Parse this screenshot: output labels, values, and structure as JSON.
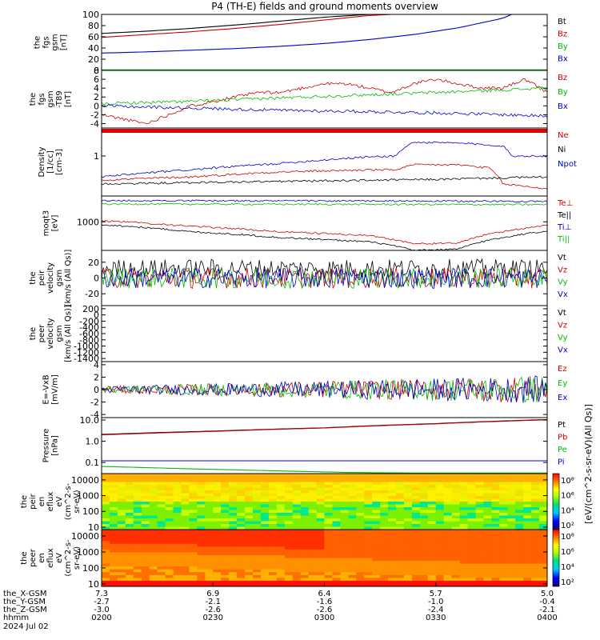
{
  "title": "P4 (TH-E) fields and ground moments overview",
  "chart_data": [
    {
      "type": "line",
      "ylabel": [
        "the",
        "fgs",
        "gsm",
        "[nT]"
      ],
      "ylim": [
        0,
        100
      ],
      "yticks": [
        "100",
        "80",
        "60",
        "40",
        "20",
        "0"
      ],
      "legend": [
        {
          "name": "Bt",
          "color": "#000000"
        },
        {
          "name": "Bz",
          "color": "#cc0000"
        },
        {
          "name": "By",
          "color": "#00bb00"
        },
        {
          "name": "Bx",
          "color": "#0000cc"
        }
      ],
      "series": [
        {
          "name": "Bt",
          "color": "#000000",
          "x": [
            0,
            0.1,
            0.2,
            0.3,
            0.4,
            0.5,
            0.6,
            0.7
          ],
          "y": [
            66,
            70,
            75,
            81,
            88,
            95,
            100,
            100
          ]
        },
        {
          "name": "Bz",
          "color": "#cc0000",
          "x": [
            0,
            0.1,
            0.2,
            0.3,
            0.4,
            0.5,
            0.6,
            0.65
          ],
          "y": [
            59,
            64,
            69,
            75,
            82,
            90,
            98,
            100
          ]
        },
        {
          "name": "By",
          "color": "#00bb00",
          "x": [
            0,
            0.25,
            0.5,
            0.75,
            1
          ],
          "y": [
            1,
            1,
            1,
            1,
            1
          ]
        },
        {
          "name": "Bx",
          "color": "#0000cc",
          "x": [
            0,
            0.1,
            0.2,
            0.3,
            0.4,
            0.5,
            0.6,
            0.7,
            0.8,
            0.9,
            0.92
          ],
          "y": [
            31,
            33,
            36,
            39,
            43,
            48,
            55,
            64,
            76,
            93,
            100
          ]
        }
      ]
    },
    {
      "type": "line",
      "ylabel": [
        "the",
        "fgs",
        "gsm",
        "-T89",
        "[nT]"
      ],
      "ylim": [
        -5,
        8
      ],
      "yticks": [
        "8",
        "6",
        "4",
        "2",
        "0",
        "-2",
        "-4"
      ],
      "legend": [
        {
          "name": "Bz",
          "color": "#cc0000"
        },
        {
          "name": "By",
          "color": "#00bb00"
        },
        {
          "name": "Bx",
          "color": "#0000cc"
        }
      ],
      "series": [
        {
          "name": "Bz",
          "color": "#cc0000",
          "x": [
            0,
            0.05,
            0.1,
            0.15,
            0.2,
            0.25,
            0.3,
            0.35,
            0.4,
            0.45,
            0.5,
            0.55,
            0.6,
            0.65,
            0.7,
            0.75,
            0.8,
            0.85,
            0.9,
            0.95,
            1
          ],
          "y": [
            -2,
            -3,
            -4,
            -2,
            0,
            1,
            2,
            3,
            3,
            4,
            5,
            5,
            4,
            3,
            5,
            6,
            5,
            4,
            4,
            6,
            3
          ]
        },
        {
          "name": "By",
          "color": "#00bb00",
          "x": [
            0,
            0.2,
            0.4,
            0.6,
            0.8,
            1
          ],
          "y": [
            0.5,
            1,
            1.8,
            2.5,
            3.2,
            4
          ]
        },
        {
          "name": "Bx",
          "color": "#0000cc",
          "x": [
            0,
            0.2,
            0.4,
            0.6,
            0.8,
            1
          ],
          "y": [
            0,
            -0.5,
            -1,
            -1.3,
            -1.7,
            -2.3
          ]
        }
      ]
    },
    {
      "type": "line",
      "ylabel": [
        "Density",
        "[1/cc]",
        "[cm-3]"
      ],
      "yscale": "log",
      "ylim": [
        0.1,
        5
      ],
      "yticks": [
        "1"
      ],
      "legend": [
        {
          "name": "Ne",
          "color": "#cc0000"
        },
        {
          "name": "Ni",
          "color": "#000000"
        },
        {
          "name": "Npot",
          "color": "#0000cc"
        }
      ],
      "series": [
        {
          "name": "Ne",
          "color": "#cc0000",
          "x": [
            0,
            0.2,
            0.4,
            0.6,
            0.66,
            0.7,
            0.8,
            0.87,
            0.9,
            1
          ],
          "y": [
            0.25,
            0.3,
            0.4,
            0.45,
            0.45,
            0.6,
            0.6,
            0.5,
            0.2,
            0.15
          ]
        },
        {
          "name": "Ni",
          "color": "#000000",
          "x": [
            0,
            0.25,
            0.5,
            0.75,
            1
          ],
          "y": [
            0.2,
            0.22,
            0.24,
            0.26,
            0.3
          ]
        },
        {
          "name": "Npot",
          "color": "#0000cc",
          "x": [
            0,
            0.2,
            0.4,
            0.6,
            0.66,
            0.7,
            0.8,
            0.9,
            0.92,
            1
          ],
          "y": [
            0.3,
            0.45,
            0.65,
            0.95,
            1,
            2.2,
            2.1,
            1.8,
            1,
            1
          ]
        }
      ]
    },
    {
      "type": "line",
      "ylabel": [
        "moqt3",
        "[eV]"
      ],
      "yscale": "log",
      "ylim": [
        100,
        8000
      ],
      "yticks": [
        "1000"
      ],
      "legend": [
        {
          "name": "Te⊥",
          "color": "#cc0000"
        },
        {
          "name": "Te||",
          "color": "#000000"
        },
        {
          "name": "Ti⊥",
          "color": "#0000cc"
        },
        {
          "name": "Ti||",
          "color": "#00bb00"
        }
      ],
      "series": [
        {
          "name": "Te⊥",
          "color": "#cc0000",
          "x": [
            0,
            0.2,
            0.4,
            0.6,
            0.7,
            0.8,
            0.9,
            1
          ],
          "y": [
            1100,
            700,
            450,
            330,
            170,
            180,
            450,
            750
          ]
        },
        {
          "name": "Te||",
          "color": "#000000",
          "x": [
            0,
            0.2,
            0.4,
            0.6,
            0.7,
            0.8,
            0.9,
            1
          ],
          "y": [
            800,
            450,
            280,
            200,
            100,
            110,
            280,
            480
          ]
        },
        {
          "name": "Ti⊥",
          "color": "#0000cc",
          "x": [
            0,
            0.5,
            1
          ],
          "y": [
            5500,
            5400,
            5200
          ]
        },
        {
          "name": "Ti||",
          "color": "#00bb00",
          "x": [
            0,
            0.5,
            1
          ],
          "y": [
            4200,
            4100,
            4000
          ]
        }
      ]
    },
    {
      "type": "line",
      "ylabel": [
        "the",
        "peir",
        "velocity",
        "gsm",
        "[km/s (All Qs)]"
      ],
      "ylim": [
        -35,
        35
      ],
      "yticks": [
        "20",
        "0",
        "-20"
      ],
      "legend": [
        {
          "name": "Vt",
          "color": "#000000"
        },
        {
          "name": "Vz",
          "color": "#cc0000"
        },
        {
          "name": "Vy",
          "color": "#00bb00"
        },
        {
          "name": "Vx",
          "color": "#0000cc"
        }
      ],
      "series": [
        {
          "name": "Vt",
          "color": "#000000",
          "x": [
            0,
            1
          ],
          "y": [
            12,
            12
          ]
        },
        {
          "name": "Vz",
          "color": "#cc0000",
          "x": [
            0,
            1
          ],
          "y": [
            0,
            0
          ]
        },
        {
          "name": "Vy",
          "color": "#00bb00",
          "x": [
            0,
            1
          ],
          "y": [
            0,
            0
          ]
        },
        {
          "name": "Vx",
          "color": "#0000cc",
          "x": [
            0,
            1
          ],
          "y": [
            0,
            0
          ]
        }
      ]
    },
    {
      "type": "line",
      "ylabel": [
        "the",
        "peer",
        "velocity",
        "gsm",
        "[km/s (All Qs)]"
      ],
      "ylim": [
        -1500,
        300
      ],
      "yticks": [
        "200",
        "0",
        "-200",
        "-400",
        "-600",
        "-800",
        "-1000",
        "-1200",
        "-1400"
      ],
      "legend": [
        {
          "name": "Vt",
          "color": "#000000"
        },
        {
          "name": "Vz",
          "color": "#cc0000"
        },
        {
          "name": "Vy",
          "color": "#00bb00"
        },
        {
          "name": "Vx",
          "color": "#0000cc"
        }
      ],
      "series": []
    },
    {
      "type": "line",
      "ylabel": [
        "E=-VxB",
        "[mV/m]"
      ],
      "ylim": [
        -4.5,
        4.5
      ],
      "yticks": [
        "4",
        "2",
        "0",
        "-2",
        "-4"
      ],
      "legend": [
        {
          "name": "Ez",
          "color": "#cc0000"
        },
        {
          "name": "Ey",
          "color": "#00bb00"
        },
        {
          "name": "Ex",
          "color": "#0000cc"
        }
      ],
      "series": [
        {
          "name": "Ez",
          "color": "#cc0000",
          "x": [
            0,
            1
          ],
          "y": [
            0,
            0
          ]
        },
        {
          "name": "Ey",
          "color": "#00bb00",
          "x": [
            0,
            1
          ],
          "y": [
            0,
            0
          ]
        },
        {
          "name": "Ex",
          "color": "#0000cc",
          "x": [
            0,
            1
          ],
          "y": [
            0,
            0
          ]
        }
      ]
    },
    {
      "type": "line",
      "ylabel": [
        "Pressure",
        "[nPa]"
      ],
      "yscale": "log",
      "ylim": [
        0.03,
        13
      ],
      "yticks": [
        "10.0",
        "1.0",
        "0.1"
      ],
      "legend": [
        {
          "name": "Pt",
          "color": "#000000"
        },
        {
          "name": "Pb",
          "color": "#cc0000"
        },
        {
          "name": "Pe",
          "color": "#00bb00"
        },
        {
          "name": "Pi",
          "color": "#0000cc"
        }
      ],
      "series": [
        {
          "name": "Pt",
          "color": "#000000",
          "x": [
            0,
            0.25,
            0.5,
            0.75,
            1
          ],
          "y": [
            2.1,
            3,
            4.3,
            6.8,
            10.5
          ]
        },
        {
          "name": "Pb",
          "color": "#cc0000",
          "x": [
            0,
            0.25,
            0.5,
            0.75,
            1
          ],
          "y": [
            2,
            2.9,
            4.2,
            6.6,
            10.2
          ]
        },
        {
          "name": "Pe",
          "color": "#00bb00",
          "x": [
            0,
            0.2,
            0.4,
            0.55,
            0.7,
            1
          ],
          "y": [
            0.065,
            0.05,
            0.04,
            0.034,
            0.032,
            0.032
          ]
        },
        {
          "name": "Pi",
          "color": "#0000cc",
          "x": [
            0,
            0.5,
            1
          ],
          "y": [
            0.12,
            0.12,
            0.12
          ]
        }
      ]
    },
    {
      "type": "heatmap",
      "ylabel": [
        "the",
        "peir",
        "en",
        "eflux",
        "eV",
        "(cm^2-s-",
        "sr-eV)"
      ],
      "yscale": "log",
      "ylim": [
        7,
        25000
      ],
      "yticks": [
        "10000",
        "1000",
        "100",
        "10"
      ]
    },
    {
      "type": "heatmap",
      "ylabel": [
        "the",
        "peer",
        "en",
        "eflux",
        "eV",
        "(cm^2-s-",
        "sr-eV)"
      ],
      "yscale": "log",
      "ylim": [
        7,
        25000
      ],
      "yticks": [
        "10000",
        "1000",
        "100",
        "10"
      ]
    }
  ],
  "colorbar": {
    "label": "[eV/(cm^2-s-sr-eV)(All Qs)]",
    "ticks_upper": [
      "10^8",
      "10^6",
      "10^4",
      "10^2"
    ],
    "ticks_lower": [
      "10^8",
      "10^6",
      "10^4",
      "10^2"
    ]
  },
  "xaxis": {
    "row_labels": [
      "the_X-GSM",
      "the_Y-GSM",
      "the_Z-GSM",
      "hhmm",
      "2024 Jul 02"
    ],
    "ticks": [
      {
        "values": [
          "7.3",
          "-2.7",
          "-3.0",
          "0200"
        ]
      },
      {
        "values": [
          "6.9",
          "-2.1",
          "-2.6",
          "0230"
        ]
      },
      {
        "values": [
          "6.4",
          "-1.6",
          "-2.6",
          "0300"
        ]
      },
      {
        "values": [
          "5.7",
          "-1.0",
          "-2.4",
          "0330"
        ]
      },
      {
        "values": [
          "5.0",
          "-0.4",
          "-2.1",
          "0400"
        ]
      }
    ]
  }
}
